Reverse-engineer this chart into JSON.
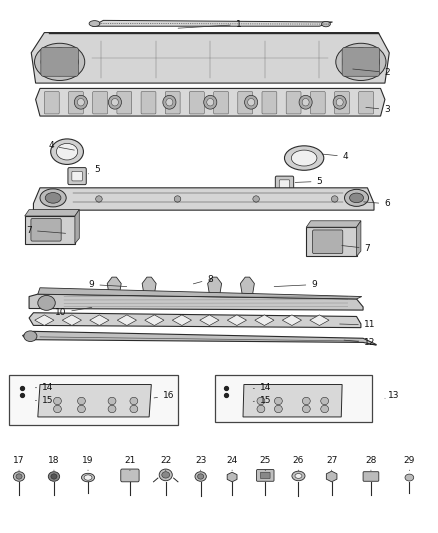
{
  "bg_color": "#ffffff",
  "fig_width": 4.38,
  "fig_height": 5.33,
  "dpi": 100,
  "lc": "#2a2a2a",
  "lc2": "#555555",
  "fc_light": "#e8e8e8",
  "fc_mid": "#cccccc",
  "fc_dark": "#999999",
  "fs": 6.5,
  "label_color": "#111111",
  "label_configs": [
    [
      1,
      0.545,
      0.955,
      0.4,
      0.948
    ],
    [
      2,
      0.885,
      0.865,
      0.8,
      0.872
    ],
    [
      3,
      0.885,
      0.795,
      0.83,
      0.8
    ],
    [
      4,
      0.115,
      0.727,
      0.175,
      0.718
    ],
    [
      4,
      0.79,
      0.707,
      0.73,
      0.712
    ],
    [
      5,
      0.22,
      0.682,
      0.195,
      0.672
    ],
    [
      5,
      0.73,
      0.66,
      0.668,
      0.658
    ],
    [
      6,
      0.885,
      0.618,
      0.825,
      0.622
    ],
    [
      7,
      0.065,
      0.568,
      0.155,
      0.562
    ],
    [
      7,
      0.84,
      0.534,
      0.775,
      0.54
    ],
    [
      8,
      0.48,
      0.476,
      0.435,
      0.466
    ],
    [
      9,
      0.208,
      0.466,
      0.295,
      0.462
    ],
    [
      9,
      0.718,
      0.466,
      0.62,
      0.462
    ],
    [
      10,
      0.137,
      0.413,
      0.215,
      0.424
    ],
    [
      11,
      0.845,
      0.39,
      0.77,
      0.392
    ],
    [
      12,
      0.845,
      0.357,
      0.78,
      0.362
    ],
    [
      13,
      0.9,
      0.257,
      0.88,
      0.252
    ],
    [
      14,
      0.108,
      0.272,
      0.073,
      0.272
    ],
    [
      14,
      0.607,
      0.272,
      0.572,
      0.27
    ],
    [
      15,
      0.108,
      0.248,
      0.073,
      0.248
    ],
    [
      15,
      0.607,
      0.248,
      0.572,
      0.246
    ],
    [
      16,
      0.385,
      0.257,
      0.345,
      0.252
    ],
    [
      17,
      0.042,
      0.136,
      0.042,
      0.116
    ],
    [
      18,
      0.122,
      0.136,
      0.122,
      0.116
    ],
    [
      19,
      0.2,
      0.136,
      0.2,
      0.116
    ],
    [
      21,
      0.296,
      0.136,
      0.296,
      0.116
    ],
    [
      22,
      0.378,
      0.136,
      0.378,
      0.116
    ],
    [
      23,
      0.458,
      0.136,
      0.458,
      0.116
    ],
    [
      24,
      0.53,
      0.136,
      0.53,
      0.116
    ],
    [
      25,
      0.606,
      0.136,
      0.606,
      0.116
    ],
    [
      26,
      0.682,
      0.136,
      0.682,
      0.116
    ],
    [
      27,
      0.758,
      0.136,
      0.758,
      0.116
    ],
    [
      28,
      0.848,
      0.136,
      0.848,
      0.116
    ],
    [
      29,
      0.936,
      0.136,
      0.936,
      0.116
    ]
  ]
}
